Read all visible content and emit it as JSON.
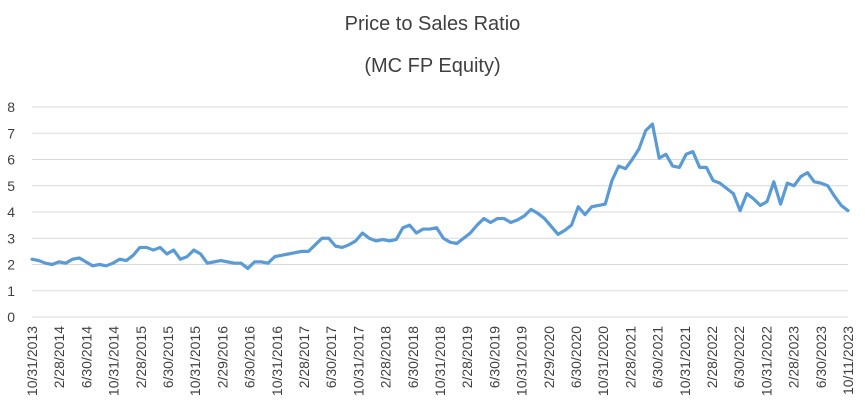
{
  "chart_data": {
    "type": "line",
    "title": "Price to Sales Ratio",
    "subtitle": "(MC FP Equity)",
    "xlabel": "",
    "ylabel": "",
    "ylim": [
      0,
      8
    ],
    "y_ticks": [
      "0",
      "1",
      "2",
      "3",
      "4",
      "5",
      "6",
      "7",
      "8"
    ],
    "x_tick_labels": [
      "10/31/2013",
      "2/28/2014",
      "6/30/2014",
      "10/31/2014",
      "2/28/2015",
      "6/30/2015",
      "10/31/2015",
      "2/29/2016",
      "6/30/2016",
      "10/31/2016",
      "2/28/2017",
      "6/30/2017",
      "10/31/2017",
      "2/28/2018",
      "6/30/2018",
      "10/31/2018",
      "2/28/2019",
      "6/30/2019",
      "10/31/2019",
      "2/29/2020",
      "6/30/2020",
      "10/31/2020",
      "2/28/2021",
      "6/30/2021",
      "10/31/2021",
      "2/28/2022",
      "6/30/2022",
      "10/31/2022",
      "2/28/2023",
      "6/30/2023",
      "10/11/2023"
    ],
    "grid": "horizontal",
    "legend": "none",
    "series_color": "#5B9BD5",
    "series": [
      {
        "values": [
          2.2,
          2.15,
          2.05,
          2.0,
          2.1,
          2.05,
          2.2,
          2.25,
          2.1,
          1.95,
          2.0,
          1.95,
          2.05,
          2.2,
          2.15,
          2.35,
          2.65,
          2.65,
          2.55,
          2.65,
          2.4,
          2.55,
          2.2,
          2.3,
          2.55,
          2.4,
          2.05,
          2.1,
          2.15,
          2.1,
          2.05,
          2.05,
          1.85,
          2.1,
          2.1,
          2.05,
          2.3,
          2.35,
          2.4,
          2.45,
          2.5,
          2.5,
          2.75,
          3.0,
          3.0,
          2.7,
          2.65,
          2.75,
          2.9,
          3.2,
          3.0,
          2.9,
          2.95,
          2.9,
          2.95,
          3.4,
          3.5,
          3.2,
          3.35,
          3.35,
          3.4,
          3.0,
          2.85,
          2.8,
          3.0,
          3.2,
          3.5,
          3.75,
          3.6,
          3.75,
          3.75,
          3.6,
          3.7,
          3.85,
          4.1,
          3.95,
          3.75,
          3.45,
          3.15,
          3.3,
          3.5,
          4.2,
          3.9,
          4.2,
          4.25,
          4.3,
          5.2,
          5.75,
          5.65,
          6.0,
          6.4,
          7.1,
          7.35,
          6.05,
          6.2,
          5.75,
          5.7,
          6.2,
          6.3,
          5.7,
          5.7,
          5.2,
          5.1,
          4.9,
          4.7,
          4.05,
          4.7,
          4.5,
          4.25,
          4.4,
          5.15,
          4.3,
          5.1,
          5.0,
          5.35,
          5.5,
          5.15,
          5.1,
          5.0,
          4.6,
          4.25,
          4.05
        ]
      }
    ]
  }
}
